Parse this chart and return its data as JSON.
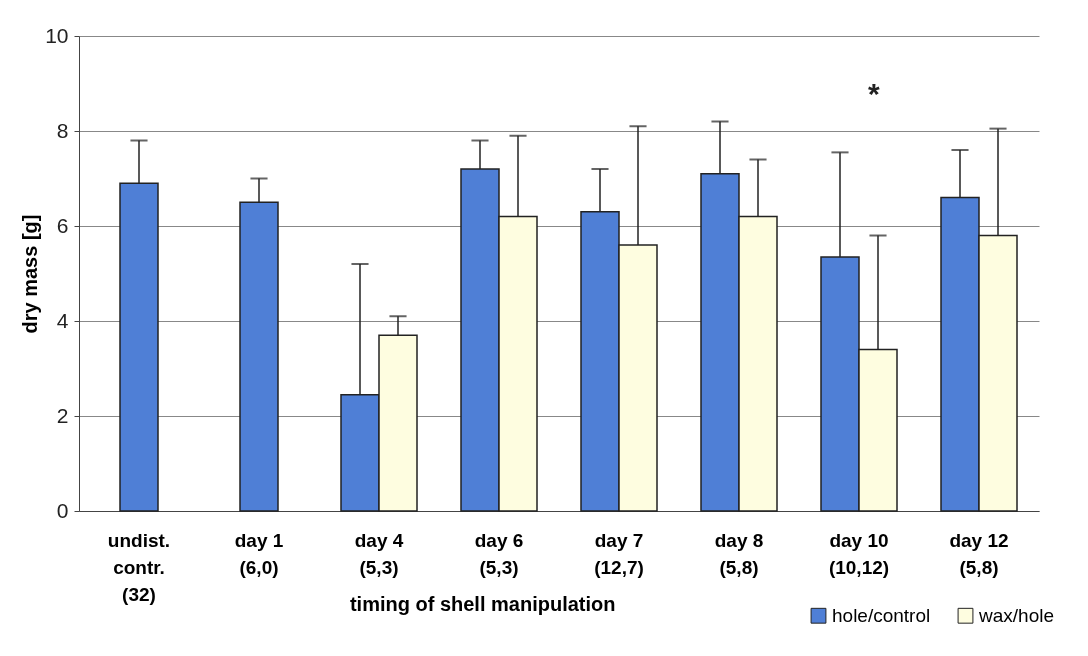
{
  "chart_data": {
    "type": "bar",
    "xlabel": "timing of shell manipulation",
    "ylabel": "dry mass [g]",
    "categories": [
      "undist.\ncontr.\n(32)",
      "day 1\n(6,0)",
      "day 4\n(5,3)",
      "day 6\n(5,3)",
      "day 7\n(12,7)",
      "day 8\n(5,8)",
      "day 10\n(10,12)",
      "day 12\n(5,8)"
    ],
    "series": [
      {
        "name": "hole/control",
        "color": "#4f7fd6",
        "values": [
          6.9,
          6.5,
          2.45,
          7.2,
          6.3,
          7.1,
          5.35,
          6.6
        ],
        "errors": [
          [
            6.9,
            7.8
          ],
          [
            6.5,
            7.0
          ],
          [
            2.45,
            5.2
          ],
          [
            7.2,
            7.8
          ],
          [
            6.3,
            7.2
          ],
          [
            7.1,
            8.2
          ],
          [
            5.35,
            7.55
          ],
          [
            6.6,
            7.6
          ]
        ]
      },
      {
        "name": "wax/hole",
        "color": "#fefde0",
        "values": [
          null,
          null,
          3.7,
          6.2,
          5.6,
          6.2,
          3.4,
          5.8
        ],
        "errors": [
          null,
          null,
          [
            3.7,
            4.1
          ],
          [
            6.2,
            7.9
          ],
          [
            5.6,
            8.1
          ],
          [
            6.2,
            7.4
          ],
          [
            3.4,
            5.8
          ],
          [
            5.8,
            8.05
          ]
        ]
      }
    ],
    "ylim": [
      0,
      10
    ],
    "yticks": [
      0,
      2,
      4,
      6,
      8,
      10
    ],
    "grid": "y",
    "legend": "bottom right",
    "annotations": [
      "*"
    ]
  }
}
